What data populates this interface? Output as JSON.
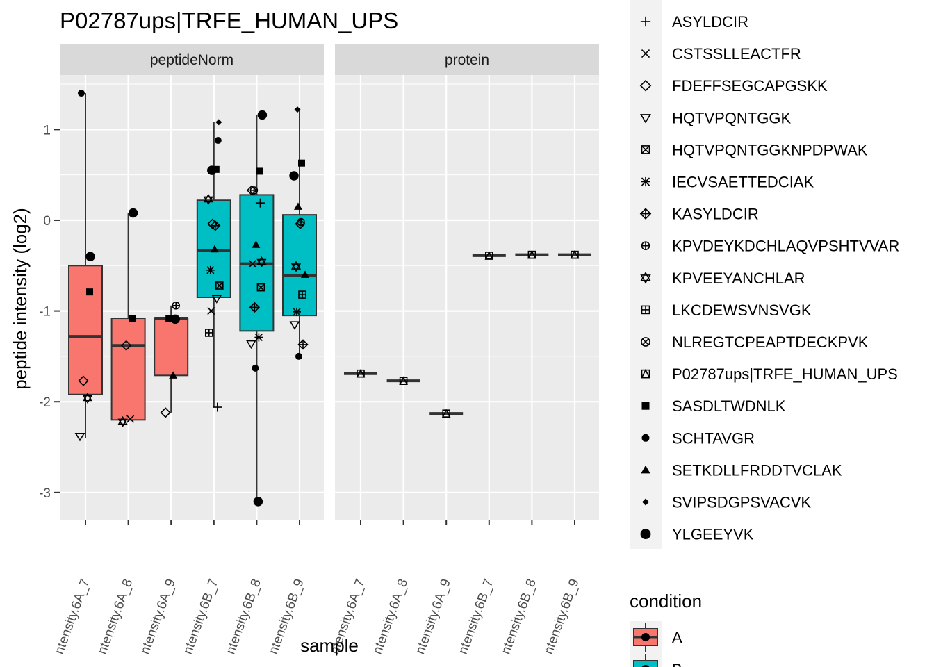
{
  "chart_data": {
    "type": "boxplot",
    "title": "P02787ups|TRFE_HUMAN_UPS",
    "xlabel": "sample",
    "ylabel": "peptide intensity (log2)",
    "ylim": [
      -3.3,
      1.6
    ],
    "yticks": [
      -3,
      -2,
      -1,
      0,
      1
    ],
    "ytick_labels": [
      "-3",
      "-2",
      "-1",
      "0",
      "1"
    ],
    "grid": true,
    "x_tick_rotation_deg": 70,
    "samples": [
      "ntensity.6A_7",
      "ntensity.6A_8",
      "ntensity.6A_9",
      "ntensity.6B_7",
      "ntensity.6B_8",
      "ntensity.6B_9"
    ],
    "sample_condition": [
      "A",
      "A",
      "A",
      "B",
      "B",
      "B"
    ],
    "panels": [
      {
        "name": "peptideNorm",
        "boxes": [
          {
            "sample": "ntensity.6A_7",
            "condition": "A",
            "whisker_low": -2.4,
            "q1": -1.92,
            "median": -1.28,
            "q3": -0.5,
            "whisker_high": 1.4
          },
          {
            "sample": "ntensity.6A_8",
            "condition": "A",
            "whisker_low": -2.21,
            "q1": -2.2,
            "median": -1.38,
            "q3": -1.08,
            "whisker_high": 0.08
          },
          {
            "sample": "ntensity.6A_9",
            "condition": "A",
            "whisker_low": -2.12,
            "q1": -1.71,
            "median": -1.08,
            "q3": -1.08,
            "whisker_high": -0.94
          },
          {
            "sample": "ntensity.6B_7",
            "condition": "B",
            "whisker_low": -2.06,
            "q1": -0.85,
            "median": -0.33,
            "q3": 0.22,
            "whisker_high": 1.08
          },
          {
            "sample": "ntensity.6B_8",
            "condition": "B",
            "whisker_low": -3.1,
            "q1": -1.22,
            "median": -0.48,
            "q3": 0.28,
            "whisker_high": 1.16
          },
          {
            "sample": "ntensity.6B_9",
            "condition": "B",
            "whisker_low": -1.5,
            "q1": -1.05,
            "median": -0.61,
            "q3": 0.06,
            "whisker_high": 1.22
          }
        ],
        "points": [
          {
            "sample": "ntensity.6A_7",
            "peptide": "SCHTAVGR",
            "y": 1.4
          },
          {
            "sample": "ntensity.6A_7",
            "peptide": "YLGEEYVK",
            "y": -0.4
          },
          {
            "sample": "ntensity.6A_7",
            "peptide": "SASDLTWDNLK",
            "y": -0.79
          },
          {
            "sample": "ntensity.6A_7",
            "peptide": "FDEFFSEGCAPGSKK",
            "y": -1.77
          },
          {
            "sample": "ntensity.6A_7",
            "peptide": "KPVEEYANCHLAR",
            "y": -1.96
          },
          {
            "sample": "ntensity.6A_7",
            "peptide": "HQTVPQNTGGK",
            "y": -2.38
          },
          {
            "sample": "ntensity.6A_8",
            "peptide": "YLGEEYVK",
            "y": 0.08
          },
          {
            "sample": "ntensity.6A_8",
            "peptide": "SASDLTWDNLK",
            "y": -1.08
          },
          {
            "sample": "ntensity.6A_8",
            "peptide": "FDEFFSEGCAPGSKK",
            "y": -1.38
          },
          {
            "sample": "ntensity.6A_8",
            "peptide": "CSTSSLLEACTFR",
            "y": -2.19
          },
          {
            "sample": "ntensity.6A_8",
            "peptide": "KPVEEYANCHLAR",
            "y": -2.22
          },
          {
            "sample": "ntensity.6A_9",
            "peptide": "KPVDEYKDCHLAQVPSHTVVAR",
            "y": -0.94
          },
          {
            "sample": "ntensity.6A_9",
            "peptide": "YLGEEYVK",
            "y": -1.09
          },
          {
            "sample": "ntensity.6A_9",
            "peptide": "SASDLTWDNLK",
            "y": -1.08
          },
          {
            "sample": "ntensity.6A_9",
            "peptide": "SETKDLLFRDDTVCLAK",
            "y": -1.71
          },
          {
            "sample": "ntensity.6A_9",
            "peptide": "FDEFFSEGCAPGSKK",
            "y": -2.12
          },
          {
            "sample": "ntensity.6B_7",
            "peptide": "SVIPSDGPSVACVK",
            "y": 1.08
          },
          {
            "sample": "ntensity.6B_7",
            "peptide": "SCHTAVGR",
            "y": 0.88
          },
          {
            "sample": "ntensity.6B_7",
            "peptide": "YLGEEYVK",
            "y": 0.55
          },
          {
            "sample": "ntensity.6B_7",
            "peptide": "SASDLTWDNLK",
            "y": 0.56
          },
          {
            "sample": "ntensity.6B_7",
            "peptide": "KPVEEYANCHLAR",
            "y": 0.23
          },
          {
            "sample": "ntensity.6B_7",
            "peptide": "FDEFFSEGCAPGSKK",
            "y": -0.04
          },
          {
            "sample": "ntensity.6B_7",
            "peptide": "KASYLDCIR",
            "y": -0.06
          },
          {
            "sample": "ntensity.6B_7",
            "peptide": "SETKDLLFRDDTVCLAK",
            "y": -0.32
          },
          {
            "sample": "ntensity.6B_7",
            "peptide": "IECVSAETTEDCIAK",
            "y": -0.55
          },
          {
            "sample": "ntensity.6B_7",
            "peptide": "HQTVPQNTGGKNPDPWAK",
            "y": -0.72
          },
          {
            "sample": "ntensity.6B_7",
            "peptide": "HQTVPQNTGGK",
            "y": -0.86
          },
          {
            "sample": "ntensity.6B_7",
            "peptide": "CSTSSLLEACTFR",
            "y": -1.0
          },
          {
            "sample": "ntensity.6B_7",
            "peptide": "LKCDEWSVNSVGK",
            "y": -1.24
          },
          {
            "sample": "ntensity.6B_7",
            "peptide": "ASYLDCIR",
            "y": -2.06
          },
          {
            "sample": "ntensity.6B_8",
            "peptide": "YLGEEYVK",
            "y": 1.16
          },
          {
            "sample": "ntensity.6B_8",
            "peptide": "SASDLTWDNLK",
            "y": 0.54
          },
          {
            "sample": "ntensity.6B_8",
            "peptide": "KPVDEYKDCHLAQVPSHTVVAR",
            "y": 0.33
          },
          {
            "sample": "ntensity.6B_8",
            "peptide": "FDEFFSEGCAPGSKK",
            "y": 0.33
          },
          {
            "sample": "ntensity.6B_8",
            "peptide": "ASYLDCIR",
            "y": 0.19
          },
          {
            "sample": "ntensity.6B_8",
            "peptide": "SETKDLLFRDDTVCLAK",
            "y": -0.27
          },
          {
            "sample": "ntensity.6B_8",
            "peptide": "CSTSSLLEACTFR",
            "y": -0.48
          },
          {
            "sample": "ntensity.6B_8",
            "peptide": "KPVEEYANCHLAR",
            "y": -0.46
          },
          {
            "sample": "ntensity.6B_8",
            "peptide": "HQTVPQNTGGKNPDPWAK",
            "y": -0.74
          },
          {
            "sample": "ntensity.6B_8",
            "peptide": "KASYLDCIR",
            "y": -0.96
          },
          {
            "sample": "ntensity.6B_8",
            "peptide": "IECVSAETTEDCIAK",
            "y": -1.29
          },
          {
            "sample": "ntensity.6B_8",
            "peptide": "HQTVPQNTGGK",
            "y": -1.36
          },
          {
            "sample": "ntensity.6B_8",
            "peptide": "SCHTAVGR",
            "y": -1.63
          },
          {
            "sample": "ntensity.6B_8",
            "peptide": "YLGEEYVK",
            "y": -3.1
          },
          {
            "sample": "ntensity.6B_9",
            "peptide": "SVIPSDGPSVACVK",
            "y": 1.22
          },
          {
            "sample": "ntensity.6B_9",
            "peptide": "SASDLTWDNLK",
            "y": 0.63
          },
          {
            "sample": "ntensity.6B_9",
            "peptide": "YLGEEYVK",
            "y": 0.49
          },
          {
            "sample": "ntensity.6B_9",
            "peptide": "SETKDLLFRDDTVCLAK",
            "y": 0.15
          },
          {
            "sample": "ntensity.6B_9",
            "peptide": "KPVDEYKDCHLAQVPSHTVVAR",
            "y": -0.02
          },
          {
            "sample": "ntensity.6B_9",
            "peptide": "FDEFFSEGCAPGSKK",
            "y": -0.04
          },
          {
            "sample": "ntensity.6B_9",
            "peptide": "KPVEEYANCHLAR",
            "y": -0.51
          },
          {
            "sample": "ntensity.6B_9",
            "peptide": "SETKDLLFRDDTVCLAK",
            "y": -0.6
          },
          {
            "sample": "ntensity.6B_9",
            "peptide": "LKCDEWSVNSVGK",
            "y": -0.82
          },
          {
            "sample": "ntensity.6B_9",
            "peptide": "IECVSAETTEDCIAK",
            "y": -1.01
          },
          {
            "sample": "ntensity.6B_9",
            "peptide": "HQTVPQNTGGK",
            "y": -1.15
          },
          {
            "sample": "ntensity.6B_9",
            "peptide": "KASYLDCIR",
            "y": -1.37
          },
          {
            "sample": "ntensity.6B_9",
            "peptide": "SCHTAVGR",
            "y": -1.5
          }
        ]
      },
      {
        "name": "protein",
        "boxes": [
          {
            "sample": "ntensity.6A_7",
            "condition": "A",
            "median": -1.69
          },
          {
            "sample": "ntensity.6A_8",
            "condition": "A",
            "median": -1.77
          },
          {
            "sample": "ntensity.6A_9",
            "condition": "A",
            "median": -2.13
          },
          {
            "sample": "ntensity.6B_7",
            "condition": "B",
            "median": -0.39
          },
          {
            "sample": "ntensity.6B_8",
            "condition": "B",
            "median": -0.38
          },
          {
            "sample": "ntensity.6B_9",
            "condition": "B",
            "median": -0.38
          }
        ],
        "points": [
          {
            "sample": "ntensity.6A_7",
            "peptide": "P02787ups|TRFE_HUMAN_UPS",
            "y": -1.69
          },
          {
            "sample": "ntensity.6A_8",
            "peptide": "P02787ups|TRFE_HUMAN_UPS",
            "y": -1.77
          },
          {
            "sample": "ntensity.6A_9",
            "peptide": "P02787ups|TRFE_HUMAN_UPS",
            "y": -2.13
          },
          {
            "sample": "ntensity.6B_7",
            "peptide": "P02787ups|TRFE_HUMAN_UPS",
            "y": -0.39
          },
          {
            "sample": "ntensity.6B_8",
            "peptide": "P02787ups|TRFE_HUMAN_UPS",
            "y": -0.38
          },
          {
            "sample": "ntensity.6B_9",
            "peptide": "P02787ups|TRFE_HUMAN_UPS",
            "y": -0.38
          }
        ]
      }
    ],
    "shape_legend": [
      {
        "label": "ASYLDCIR",
        "shape": "plus"
      },
      {
        "label": "CSTSSLLEACTFR",
        "shape": "cross"
      },
      {
        "label": "FDEFFSEGCAPGSKK",
        "shape": "diamond-open"
      },
      {
        "label": "HQTVPQNTGGK",
        "shape": "triangle-down-open"
      },
      {
        "label": "HQTVPQNTGGKNPDPWAK",
        "shape": "square-cross"
      },
      {
        "label": "IECVSAETTEDCIAK",
        "shape": "asterisk"
      },
      {
        "label": "KASYLDCIR",
        "shape": "diamond-plus"
      },
      {
        "label": "KPVDEYKDCHLAQVPSHTVVAR",
        "shape": "circle-plus"
      },
      {
        "label": "KPVEEYANCHLAR",
        "shape": "star-of-david"
      },
      {
        "label": "LKCDEWSVNSVGK",
        "shape": "square-plus"
      },
      {
        "label": "NLREGTCPEAPTDECKPVK",
        "shape": "circle-cross"
      },
      {
        "label": "P02787ups|TRFE_HUMAN_UPS",
        "shape": "square-triangle"
      },
      {
        "label": "SASDLTWDNLK",
        "shape": "square-filled"
      },
      {
        "label": "SCHTAVGR",
        "shape": "circle-filled"
      },
      {
        "label": "SETKDLLFRDDTVCLAK",
        "shape": "triangle-filled"
      },
      {
        "label": "SVIPSDGPSVACVK",
        "shape": "diamond-filled"
      },
      {
        "label": "YLGEEYVK",
        "shape": "circle-large"
      }
    ],
    "fill_legend": {
      "title": "condition",
      "entries": [
        {
          "label": "A",
          "color": "#F8766D"
        },
        {
          "label": "B",
          "color": "#00BFC4"
        }
      ]
    },
    "colors": {
      "panel_bg": "#EBEBEB",
      "strip_bg": "#D9D9D9",
      "grid": "#FFFFFF",
      "condition_A": "#F8766D",
      "condition_B": "#00BFC4"
    }
  }
}
